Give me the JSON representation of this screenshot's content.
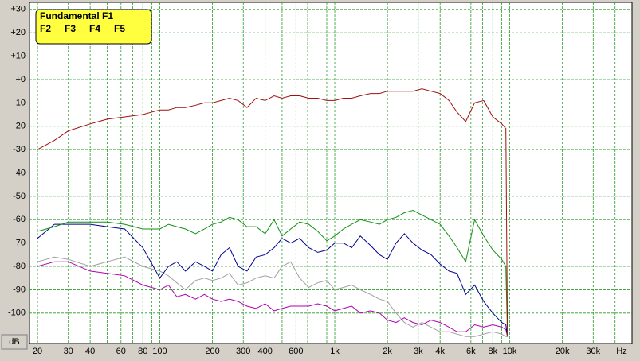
{
  "chart_data": {
    "type": "line",
    "xlabel": "Hz",
    "ylabel": "dB",
    "log_x": true,
    "grid": true,
    "xlim": [
      18,
      50000
    ],
    "ylim": [
      -113,
      33
    ],
    "xticks": [
      20,
      30,
      40,
      60,
      80,
      100,
      200,
      300,
      400,
      600,
      {
        "value": 1000,
        "label": "1k"
      },
      {
        "value": 2000,
        "label": "2k"
      },
      {
        "value": 3000,
        "label": "3k"
      },
      {
        "value": 4000,
        "label": "4k"
      },
      {
        "value": 6000,
        "label": "6k"
      },
      {
        "value": 8000,
        "label": "8k"
      },
      {
        "value": 10000,
        "label": "10k"
      },
      {
        "value": 20000,
        "label": "20k"
      },
      {
        "value": 30000,
        "label": "30k"
      }
    ],
    "minor_xticks": [
      50,
      70,
      90,
      500,
      700,
      900,
      5000,
      7000,
      9000,
      40000
    ],
    "yticks": [
      {
        "value": 30,
        "label": "+30"
      },
      {
        "value": 20,
        "label": "+20"
      },
      {
        "value": 10,
        "label": "+10"
      },
      {
        "value": 0,
        "label": "+0"
      },
      -10,
      -20,
      -30,
      -40,
      -50,
      -60,
      -70,
      -80,
      -90,
      -100
    ],
    "reference_line": {
      "value": -40,
      "color": "#a01010"
    },
    "legend": "top-left",
    "x": [
      20,
      25,
      30,
      40,
      50,
      63,
      80,
      100,
      112,
      125,
      140,
      160,
      180,
      200,
      224,
      250,
      280,
      315,
      355,
      400,
      450,
      500,
      560,
      630,
      710,
      800,
      900,
      1000,
      1120,
      1250,
      1400,
      1600,
      1800,
      2000,
      2240,
      2500,
      2800,
      3150,
      3550,
      4000,
      4500,
      5000,
      5600,
      6300,
      7100,
      8000,
      9000,
      9500,
      9700
    ],
    "series": [
      {
        "name": "Fundamental F1",
        "color": "#a01010",
        "values": [
          -30,
          -26,
          -22,
          -19,
          -17,
          -16,
          -15,
          -13,
          -13,
          -12,
          -12,
          -11,
          -10,
          -10,
          -9,
          -8,
          -9,
          -12,
          -8,
          -9,
          -7,
          -8,
          -7,
          -7,
          -8,
          -8,
          -9,
          -9,
          -8,
          -8,
          -7,
          -6,
          -6,
          -5,
          -5,
          -5,
          -5,
          -4,
          -5,
          -6,
          -9,
          -14,
          -18,
          -10,
          -9,
          -16,
          -19,
          -21,
          -110
        ]
      },
      {
        "name": "F2",
        "color": "#109010",
        "values": [
          -65,
          -63,
          -61,
          -61,
          -61,
          -62,
          -64,
          -64,
          -62,
          -63,
          -64,
          -66,
          -64,
          -62,
          -61,
          -59,
          -60,
          -63,
          -63,
          -66,
          -60,
          -67,
          -64,
          -61,
          -62,
          -65,
          -69,
          -67,
          -64,
          -62,
          -60,
          -61,
          -62,
          -60,
          -59,
          -57,
          -56,
          -58,
          -60,
          -62,
          -67,
          -72,
          -78,
          -60,
          -67,
          -73,
          -77,
          -80,
          -110
        ]
      },
      {
        "name": "F3",
        "color": "#000090",
        "values": [
          -68,
          -62,
          -62,
          -62,
          -63,
          -64,
          -72,
          -85,
          -80,
          -78,
          -82,
          -78,
          -80,
          -82,
          -75,
          -72,
          -80,
          -82,
          -76,
          -75,
          -72,
          -68,
          -70,
          -68,
          -72,
          -74,
          -73,
          -70,
          -70,
          -72,
          -67,
          -71,
          -75,
          -77,
          -70,
          -66,
          -70,
          -73,
          -75,
          -79,
          -82,
          -83,
          -92,
          -88,
          -95,
          -100,
          -104,
          -105,
          -110
        ]
      },
      {
        "name": "F4",
        "color": "#b000b0",
        "values": [
          -80,
          -78,
          -78,
          -82,
          -83,
          -84,
          -88,
          -90,
          -88,
          -93,
          -92,
          -94,
          -92,
          -94,
          -95,
          -94,
          -95,
          -97,
          -98,
          -96,
          -99,
          -98,
          -97,
          -97,
          -97,
          -96,
          -97,
          -99,
          -98,
          -97,
          -100,
          -99,
          -100,
          -103,
          -104,
          -102,
          -104,
          -105,
          -103,
          -104,
          -106,
          -108,
          -108,
          -105,
          -106,
          -105,
          -106,
          -107,
          -110
        ]
      },
      {
        "name": "F5",
        "color": "#a0a0a0",
        "values": [
          -78,
          -76,
          -77,
          -80,
          -78,
          -76,
          -80,
          -82,
          -84,
          -87,
          -90,
          -86,
          -85,
          -86,
          -85,
          -83,
          -88,
          -87,
          -85,
          -84,
          -85,
          -80,
          -78,
          -85,
          -89,
          -87,
          -86,
          -90,
          -89,
          -88,
          -90,
          -92,
          -94,
          -95,
          -100,
          -104,
          -106,
          -104,
          -106,
          -108,
          -108,
          -109,
          -110,
          -110,
          -109,
          -108,
          -109,
          -110,
          -110
        ]
      }
    ]
  }
}
